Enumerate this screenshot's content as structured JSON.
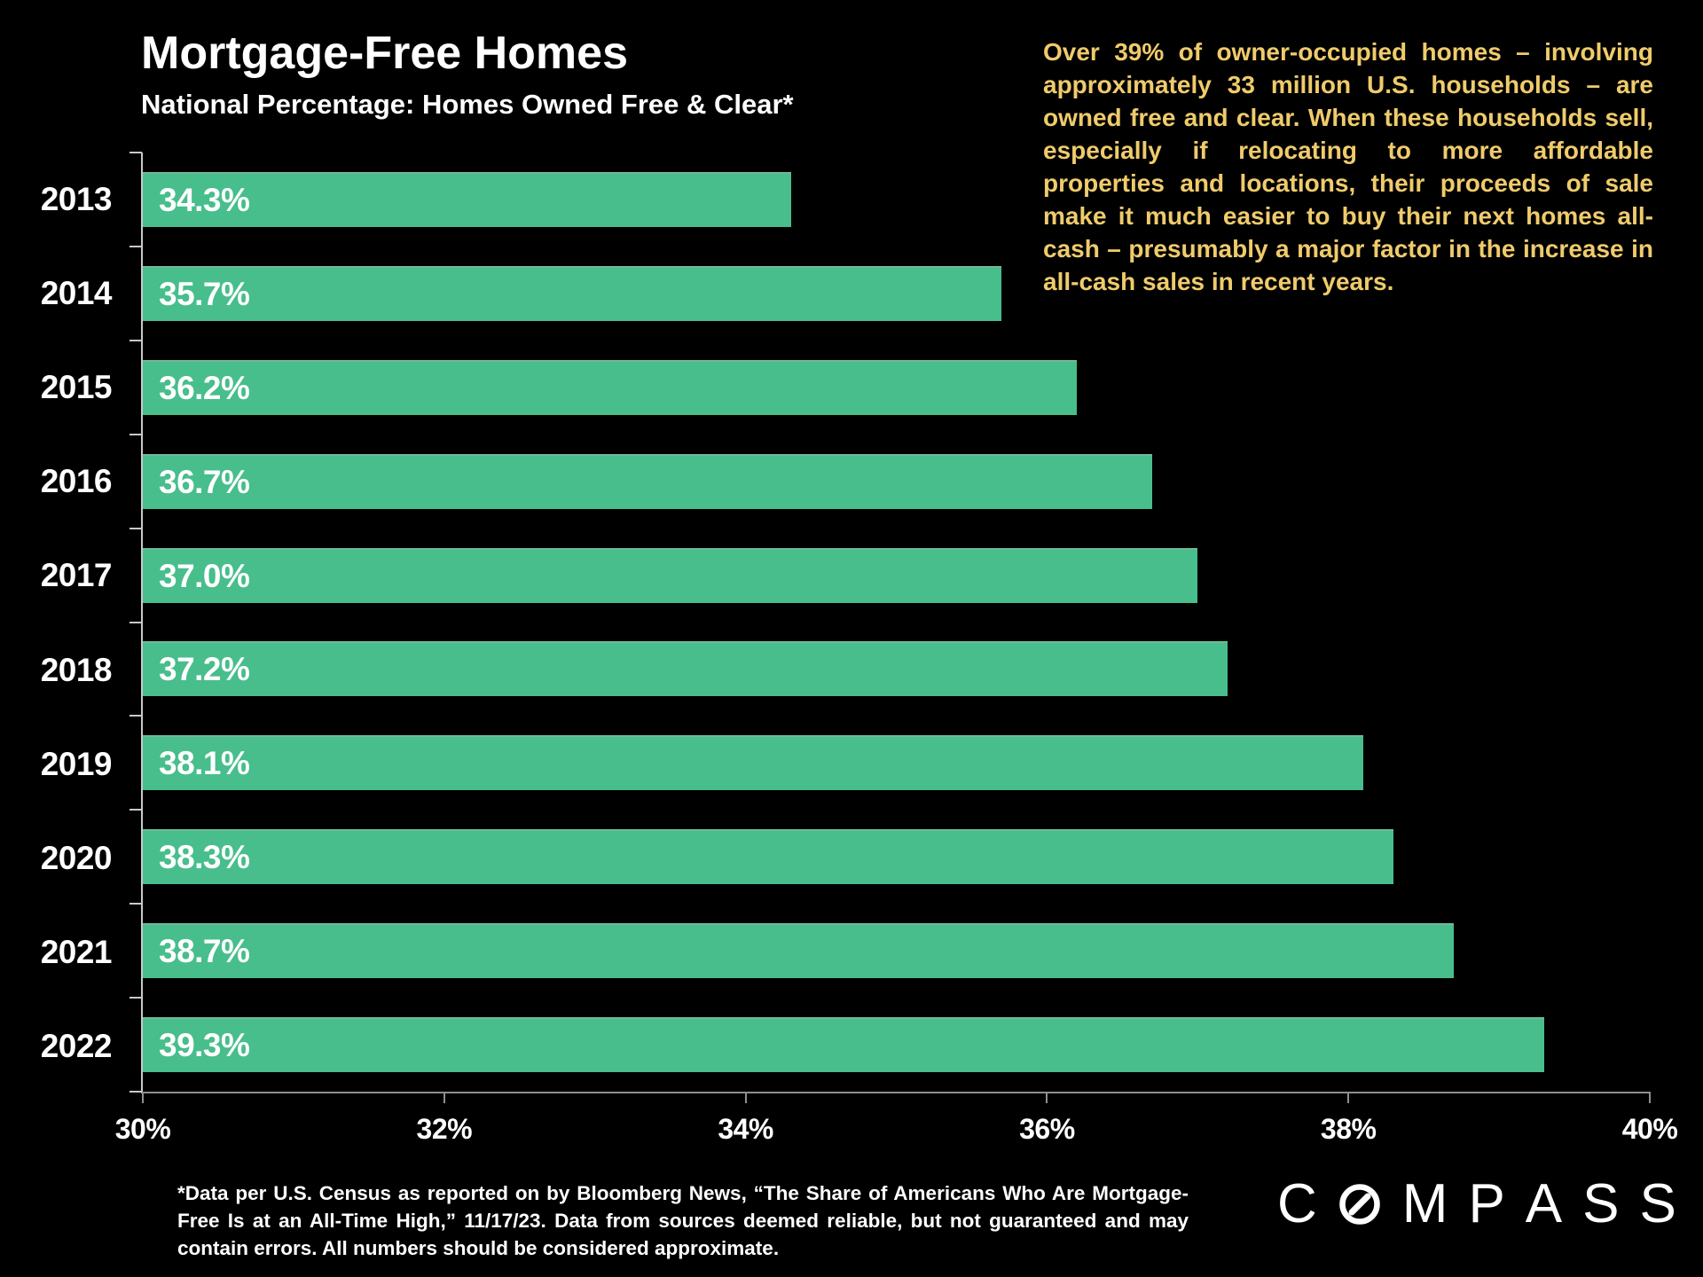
{
  "header": {
    "title": "Mortgage-Free Homes",
    "subtitle": "National Percentage: Homes Owned Free & Clear*"
  },
  "annotation": {
    "text": "Over 39% of owner-occupied homes – involving approximately 33 million U.S. households – are owned free and clear. When these households sell, especially if relocating to more affordable properties and locations, their proceeds of sale make it much easier to buy their next homes all-cash – presumably a major factor in the increase in all-cash sales in recent years."
  },
  "chart_data": {
    "type": "bar",
    "orientation": "horizontal",
    "title": "Mortgage-Free Homes",
    "subtitle": "National Percentage: Homes Owned Free & Clear*",
    "categories": [
      "2013",
      "2014",
      "2015",
      "2016",
      "2017",
      "2018",
      "2019",
      "2020",
      "2021",
      "2022"
    ],
    "values": [
      34.3,
      35.7,
      36.2,
      36.7,
      37.0,
      37.2,
      38.1,
      38.3,
      38.7,
      39.3
    ],
    "value_labels": [
      "34.3%",
      "35.7%",
      "36.2%",
      "36.7%",
      "37.0%",
      "37.2%",
      "38.1%",
      "38.3%",
      "38.7%",
      "39.3%"
    ],
    "xlim": [
      30,
      40
    ],
    "x_ticks": [
      {
        "value": 30,
        "label": "30%"
      },
      {
        "value": 32,
        "label": "32%"
      },
      {
        "value": 34,
        "label": "34%"
      },
      {
        "value": 36,
        "label": "36%"
      },
      {
        "value": 38,
        "label": "38%"
      },
      {
        "value": 40,
        "label": "40%"
      }
    ],
    "grid": false,
    "legend": null,
    "bar_color": "#47BE8C"
  },
  "footnote": {
    "text": "*Data per U.S. Census as reported on by Bloomberg News, “The Share of Americans Who Are Mortgage-Free Is at an All-Time High,” 11/17/23. Data from sources deemed reliable, but not guaranteed and may contain errors. All numbers should be considered approximate."
  },
  "logo": {
    "name": "COMPASS",
    "letters": [
      "C",
      "O",
      "M",
      "P",
      "A",
      "S",
      "S"
    ]
  },
  "colors": {
    "background": "#000000",
    "bar": "#47BE8C",
    "annotation_text": "#EFCB6B",
    "text": "#FFFFFF",
    "axis": "#9A9A9A"
  }
}
